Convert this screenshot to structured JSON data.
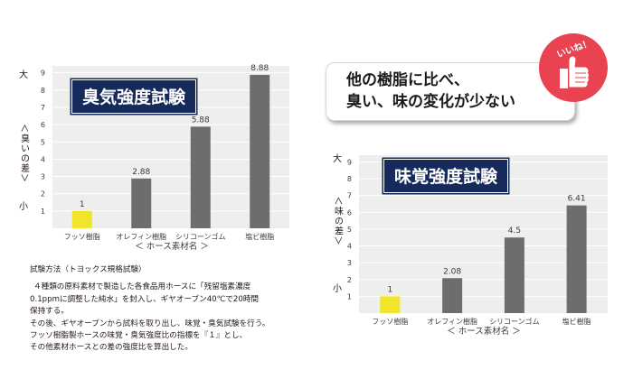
{
  "chart_data": [
    {
      "type": "bar",
      "title": "臭気強度試験",
      "ylabel_top": "大",
      "ylabel_middle": "＜臭いの差＞",
      "ylabel_bottom": "小",
      "xlabel": "＜ ホース素材名 ＞",
      "categories": [
        "フッソ樹脂",
        "オレフィン樹脂",
        "シリコーンゴム",
        "塩ビ樹脂"
      ],
      "values": [
        1,
        2.88,
        5.88,
        8.88
      ],
      "value_labels": [
        "1",
        "2.88",
        "5.88",
        "8.88"
      ],
      "yticks": [
        "1",
        "2",
        "3",
        "4",
        "5",
        "6",
        "7",
        "8",
        "9"
      ],
      "ylim": [
        0,
        9.4
      ],
      "colors": [
        "#f0e52a",
        "#6d6d6d",
        "#6d6d6d",
        "#6d6d6d"
      ],
      "grid": true
    },
    {
      "type": "bar",
      "title": "味覚強度試験",
      "ylabel_top": "大",
      "ylabel_middle": "＜味の差＞",
      "ylabel_bottom": "小",
      "xlabel": "＜ ホース素材名 ＞",
      "categories": [
        "フッソ樹脂",
        "オレフィン樹脂",
        "シリコーンゴム",
        "塩ビ樹脂"
      ],
      "values": [
        1,
        2.08,
        4.5,
        6.41
      ],
      "value_labels": [
        "1",
        "2.08",
        "4.5",
        "6.41"
      ],
      "yticks": [
        "1",
        "2",
        "3",
        "4",
        "5",
        "6",
        "7",
        "8",
        "9"
      ],
      "ylim": [
        0,
        9.4
      ],
      "colors": [
        "#f0e52a",
        "#6d6d6d",
        "#6d6d6d",
        "#6d6d6d"
      ],
      "grid": true
    }
  ],
  "method": {
    "heading": "試験方法（トヨックス規格試験）",
    "lines": [
      "４種類の原料素材で製造した各食品用ホースに「残留塩素濃度",
      "0.1ppmに調整した純水」を封入し、ギヤオーブン40℃で20時間",
      "保持する。",
      "その後、ギヤオーブンから試料を取り出し、味覚・臭気試験を行う。",
      "フッソ樹脂製ホースの味覚・臭気強度比の指標を『１』とし、",
      "その他素材ホースとの差の強度比を算出した。"
    ]
  },
  "catchphrase": {
    "line1": "他の樹脂に比べ、",
    "line2": "臭い、味の変化が少ない"
  },
  "seal": {
    "text": "いいね！",
    "icon": "thumbs-up-icon",
    "color": "#e94352"
  }
}
